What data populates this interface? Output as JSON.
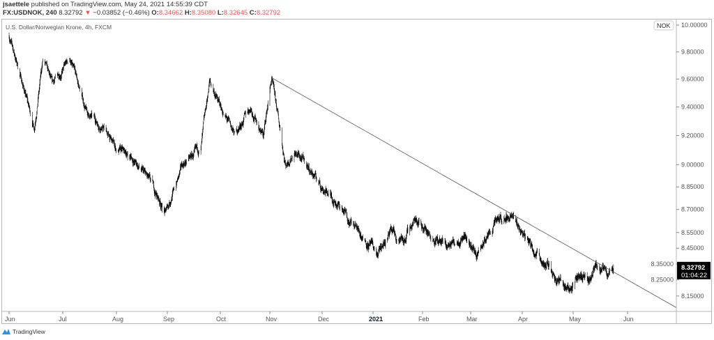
{
  "header": {
    "publisher": "jsaettele",
    "published_text": "published on TradingView.com, May 24, 2021 14:55:39 CDT",
    "symbol": "FX:USDNOK, 240",
    "last": "8.32792",
    "change": "−0.03852 (−0.46%)",
    "open_label": "O:",
    "open": "8.34662",
    "high_label": "H:",
    "high": "8.35080",
    "low_label": "L:",
    "low": "8.32645",
    "close_label": "C:",
    "close": "8.32792"
  },
  "chart_title": "U.S. Dollar/Norwegian Krone, 4h, FXCM",
  "footer": {
    "brand": "TradingView"
  },
  "colors": {
    "down": "#ef5350",
    "candle": "#000000",
    "trendline": "#555555",
    "axis_text": "#555555"
  },
  "chart_data": {
    "type": "candlestick",
    "symbol": "USDNOK",
    "interval": "4h",
    "y_scale": "log",
    "y_unit": "NOK",
    "ylim": [
      8.08,
      10.0
    ],
    "y_ticks": [
      "10.00000",
      "9.80000",
      "9.60000",
      "9.40000",
      "9.20000",
      "9.00000",
      "8.85000",
      "8.70000",
      "8.55000",
      "8.45000",
      "8.35000",
      "8.25000",
      "8.15000"
    ],
    "x_ticks": [
      "Jun",
      "Jul",
      "Aug",
      "Sep",
      "Oct",
      "Nov",
      "Dec",
      "2021",
      "Feb",
      "Mar",
      "Apr",
      "May",
      "Jun"
    ],
    "xlim": [
      "2020-05-29",
      "2021-06-30"
    ],
    "last_price_label": "8.32792",
    "countdown_label": "01:04:22",
    "approx_path": [
      [
        "2020-06-01",
        9.92
      ],
      [
        "2020-06-10",
        9.5
      ],
      [
        "2020-06-15",
        9.25
      ],
      [
        "2020-06-20",
        9.75
      ],
      [
        "2020-06-25",
        9.55
      ],
      [
        "2020-07-05",
        9.75
      ],
      [
        "2020-07-15",
        9.35
      ],
      [
        "2020-07-25",
        9.25
      ],
      [
        "2020-08-01",
        9.1
      ],
      [
        "2020-08-10",
        9.05
      ],
      [
        "2020-08-20",
        8.9
      ],
      [
        "2020-08-31",
        8.68
      ],
      [
        "2020-09-10",
        9.0
      ],
      [
        "2020-09-20",
        9.1
      ],
      [
        "2020-09-25",
        9.58
      ],
      [
        "2020-10-01",
        9.4
      ],
      [
        "2020-10-10",
        9.2
      ],
      [
        "2020-10-20",
        9.4
      ],
      [
        "2020-10-28",
        9.2
      ],
      [
        "2020-11-02",
        9.6
      ],
      [
        "2020-11-06",
        9.3
      ],
      [
        "2020-11-10",
        9.0
      ],
      [
        "2020-11-15",
        9.1
      ],
      [
        "2020-11-25",
        8.95
      ],
      [
        "2020-12-01",
        8.85
      ],
      [
        "2020-12-10",
        8.75
      ],
      [
        "2020-12-20",
        8.6
      ],
      [
        "2020-12-28",
        8.5
      ],
      [
        "2021-01-04",
        8.4
      ],
      [
        "2021-01-12",
        8.55
      ],
      [
        "2021-01-20",
        8.5
      ],
      [
        "2021-01-28",
        8.65
      ],
      [
        "2021-02-05",
        8.55
      ],
      [
        "2021-02-15",
        8.45
      ],
      [
        "2021-02-25",
        8.55
      ],
      [
        "2021-03-05",
        8.4
      ],
      [
        "2021-03-15",
        8.6
      ],
      [
        "2021-03-25",
        8.66
      ],
      [
        "2021-04-01",
        8.55
      ],
      [
        "2021-04-08",
        8.45
      ],
      [
        "2021-04-15",
        8.35
      ],
      [
        "2021-04-25",
        8.22
      ],
      [
        "2021-04-30",
        8.2
      ],
      [
        "2021-05-05",
        8.3
      ],
      [
        "2021-05-10",
        8.22
      ],
      [
        "2021-05-15",
        8.35
      ],
      [
        "2021-05-20",
        8.28
      ],
      [
        "2021-05-24",
        8.33
      ]
    ],
    "trendline": [
      [
        "2020-11-02",
        9.61
      ],
      [
        "2021-06-30",
        8.08
      ]
    ]
  }
}
